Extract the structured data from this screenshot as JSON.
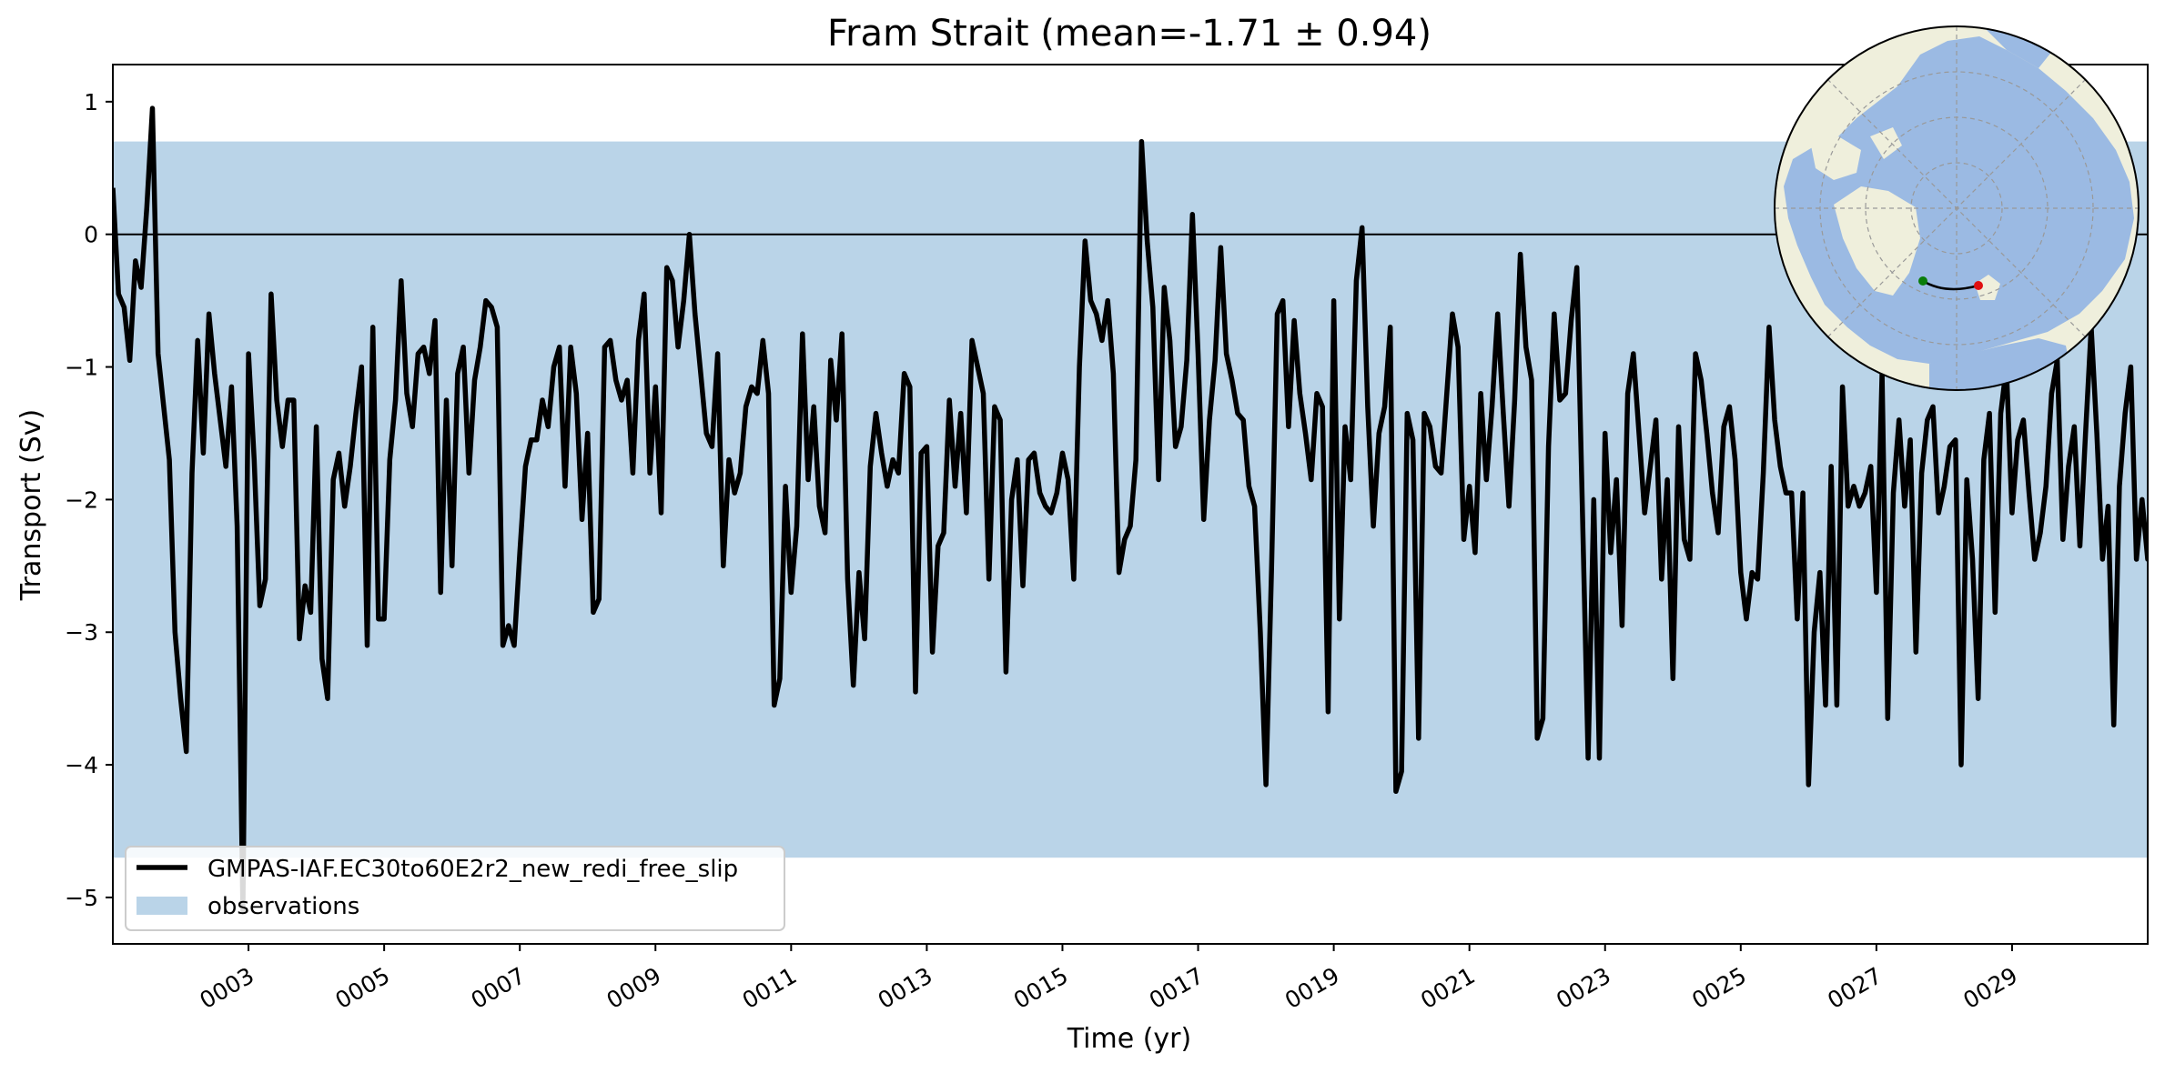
{
  "chart_data": {
    "type": "line",
    "title": "Fram Strait (mean=-1.71 ± 0.94)",
    "xlabel": "Time (yr)",
    "ylabel": "Transport (Sv)",
    "xlim": [
      1.0,
      31.0
    ],
    "ylim": [
      -5.35,
      1.28
    ],
    "xticks": [
      3,
      5,
      7,
      9,
      11,
      13,
      15,
      17,
      19,
      21,
      23,
      25,
      27,
      29
    ],
    "xtick_labels": [
      "0003",
      "0005",
      "0007",
      "0009",
      "0011",
      "0013",
      "0015",
      "0017",
      "0019",
      "0021",
      "0023",
      "0025",
      "0027",
      "0029"
    ],
    "yticks": [
      -5,
      -4,
      -3,
      -2,
      -1,
      0,
      1
    ],
    "ytick_labels": [
      "−5",
      "−4",
      "−3",
      "−2",
      "−1",
      "0",
      "1"
    ],
    "zero_line": 0,
    "observations_band": {
      "name": "observations",
      "ymin": -4.7,
      "ymax": 0.7,
      "color": "#bad4e8"
    },
    "legend_position": "lower-left",
    "inset_map": "arctic-polar-map",
    "series": [
      {
        "name": "GMPAS-IAF.EC30to60E2r2_new_redi_free_slip",
        "color": "#000000",
        "monthly_start": 1.0,
        "values": [
          0.35,
          -0.45,
          -0.55,
          -0.95,
          -0.2,
          -0.4,
          0.2,
          0.95,
          -0.9,
          -1.3,
          -1.7,
          -3.0,
          -3.5,
          -3.9,
          -1.8,
          -0.8,
          -1.65,
          -0.6,
          -1.05,
          -1.4,
          -1.75,
          -1.15,
          -2.2,
          -5.1,
          -0.9,
          -1.7,
          -2.8,
          -2.6,
          -0.45,
          -1.25,
          -1.6,
          -1.25,
          -1.25,
          -3.05,
          -2.65,
          -2.85,
          -1.45,
          -3.2,
          -3.5,
          -1.85,
          -1.65,
          -2.05,
          -1.75,
          -1.35,
          -1.0,
          -3.1,
          -0.7,
          -2.9,
          -2.9,
          -1.7,
          -1.25,
          -0.35,
          -1.2,
          -1.45,
          -0.9,
          -0.85,
          -1.05,
          -0.65,
          -2.7,
          -1.25,
          -2.5,
          -1.05,
          -0.85,
          -1.8,
          -1.1,
          -0.85,
          -0.5,
          -0.55,
          -0.7,
          -3.1,
          -2.95,
          -3.1,
          -2.4,
          -1.75,
          -1.55,
          -1.55,
          -1.25,
          -1.45,
          -1.0,
          -0.85,
          -1.9,
          -0.85,
          -1.2,
          -2.15,
          -1.5,
          -2.85,
          -2.75,
          -0.85,
          -0.8,
          -1.1,
          -1.25,
          -1.1,
          -1.8,
          -0.8,
          -0.45,
          -1.8,
          -1.15,
          -2.1,
          -0.25,
          -0.35,
          -0.85,
          -0.5,
          0.0,
          -0.6,
          -1.05,
          -1.5,
          -1.6,
          -0.9,
          -2.5,
          -1.7,
          -1.95,
          -1.8,
          -1.3,
          -1.15,
          -1.2,
          -0.8,
          -1.2,
          -3.55,
          -3.35,
          -1.9,
          -2.7,
          -2.2,
          -0.75,
          -1.85,
          -1.3,
          -2.05,
          -2.25,
          -0.95,
          -1.4,
          -0.75,
          -2.6,
          -3.4,
          -2.55,
          -3.05,
          -1.75,
          -1.35,
          -1.65,
          -1.9,
          -1.7,
          -1.8,
          -1.05,
          -1.15,
          -3.45,
          -1.65,
          -1.6,
          -3.15,
          -2.35,
          -2.25,
          -1.25,
          -1.9,
          -1.35,
          -2.1,
          -0.8,
          -1.0,
          -1.2,
          -2.6,
          -1.3,
          -1.4,
          -3.3,
          -2.0,
          -1.7,
          -2.65,
          -1.7,
          -1.65,
          -1.95,
          -2.05,
          -2.1,
          -1.95,
          -1.65,
          -1.85,
          -2.6,
          -1.0,
          -0.05,
          -0.5,
          -0.6,
          -0.8,
          -0.5,
          -1.05,
          -2.55,
          -2.3,
          -2.2,
          -1.7,
          0.7,
          -0.05,
          -0.55,
          -1.85,
          -0.4,
          -0.8,
          -1.6,
          -1.45,
          -0.95,
          0.15,
          -0.9,
          -2.15,
          -1.4,
          -0.95,
          -0.1,
          -0.9,
          -1.1,
          -1.35,
          -1.4,
          -1.9,
          -2.05,
          -3.0,
          -4.15,
          -2.5,
          -0.6,
          -0.5,
          -1.45,
          -0.65,
          -1.2,
          -1.5,
          -1.85,
          -1.2,
          -1.3,
          -3.6,
          -0.5,
          -2.9,
          -1.45,
          -1.85,
          -0.35,
          0.05,
          -1.3,
          -2.2,
          -1.5,
          -1.3,
          -0.7,
          -4.2,
          -4.05,
          -1.35,
          -1.55,
          -3.8,
          -1.35,
          -1.45,
          -1.75,
          -1.8,
          -1.2,
          -0.6,
          -0.85,
          -2.3,
          -1.9,
          -2.4,
          -1.2,
          -1.85,
          -1.3,
          -0.6,
          -1.35,
          -2.05,
          -1.25,
          -0.15,
          -0.85,
          -1.1,
          -3.8,
          -3.65,
          -1.6,
          -0.6,
          -1.25,
          -1.2,
          -0.65,
          -0.25,
          -2.1,
          -3.95,
          -2.0,
          -3.95,
          -1.5,
          -2.4,
          -1.85,
          -2.95,
          -1.2,
          -0.9,
          -1.5,
          -2.1,
          -1.75,
          -1.4,
          -2.6,
          -1.85,
          -3.35,
          -1.45,
          -2.3,
          -2.45,
          -0.9,
          -1.1,
          -1.5,
          -1.95,
          -2.25,
          -1.45,
          -1.3,
          -1.7,
          -2.55,
          -2.9,
          -2.55,
          -2.6,
          -1.8,
          -0.7,
          -1.4,
          -1.75,
          -1.95,
          -1.95,
          -2.9,
          -1.95,
          -4.15,
          -3.0,
          -2.55,
          -3.55,
          -1.75,
          -3.55,
          -1.15,
          -2.05,
          -1.9,
          -2.05,
          -1.95,
          -1.75,
          -2.7,
          -1.05,
          -3.65,
          -1.95,
          -1.4,
          -2.05,
          -1.55,
          -3.15,
          -1.8,
          -1.4,
          -1.3,
          -2.1,
          -1.9,
          -1.6,
          -1.55,
          -4.0,
          -1.85,
          -2.45,
          -3.5,
          -1.7,
          -1.35,
          -2.85,
          -1.35,
          -1.0,
          -2.1,
          -1.55,
          -1.4,
          -1.95,
          -2.45,
          -2.25,
          -1.9,
          -1.2,
          -0.95,
          -2.3,
          -1.75,
          -1.45,
          -2.35,
          -1.5,
          -0.7,
          -1.5,
          -2.45,
          -2.05,
          -3.7,
          -1.9,
          -1.35,
          -1.0,
          -2.45,
          -2.0,
          -2.45,
          -2.05,
          -2.1,
          -2.85,
          -3.0,
          -2.25
        ]
      }
    ]
  }
}
